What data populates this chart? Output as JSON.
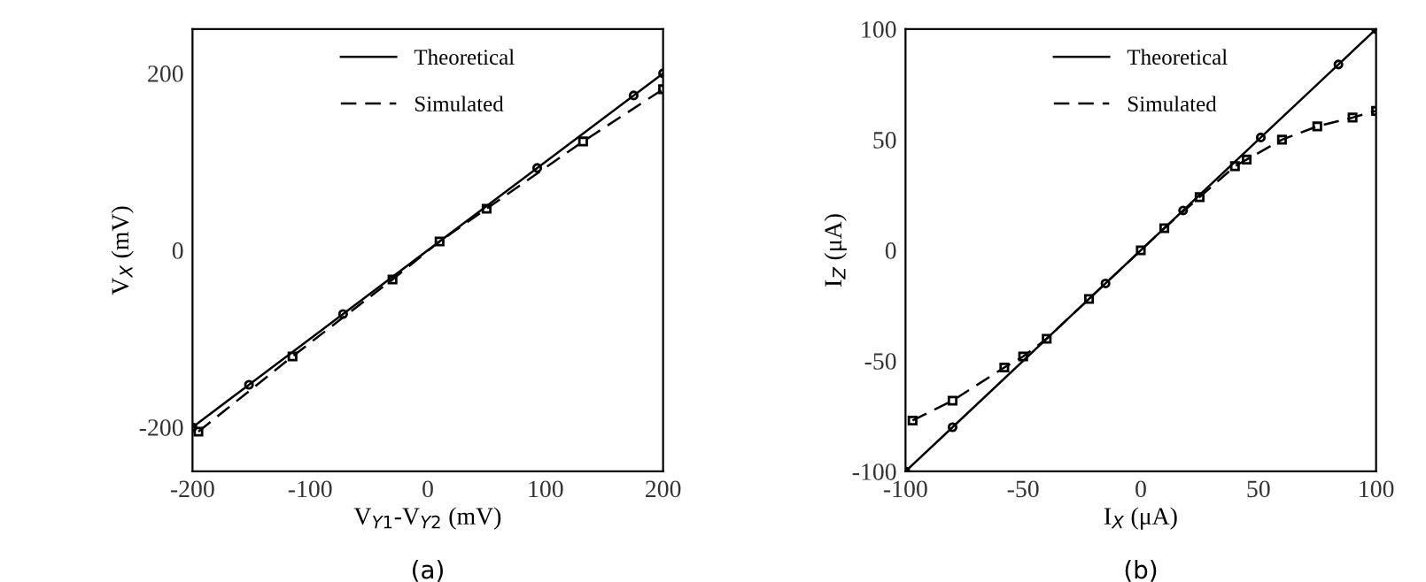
{
  "chart_data": [
    {
      "type": "line",
      "xlabel": "V$_{Y1}$-V$_{Y2}$ (mV)",
      "ylabel": "V$_{X}$ (mV)",
      "annotations": [
        "(a)"
      ],
      "legend": "top",
      "grid": false,
      "xlim": [
        -200,
        200
      ],
      "ylim": [
        -250,
        250
      ],
      "xticks": [
        -200,
        -100,
        0,
        100,
        200
      ],
      "yticks": [
        -200,
        0,
        200
      ],
      "series": [
        {
          "name": "Theoretical",
          "color": "#000000",
          "line_style": "solid",
          "marker": "circle",
          "x": [
            -200,
            -152,
            -72,
            93,
            175,
            200
          ],
          "values": [
            -200,
            -152,
            -72,
            93,
            175,
            200
          ]
        },
        {
          "name": "Simulated",
          "color": "#000000",
          "line_style": "dashed",
          "marker": "square",
          "x": [
            -195,
            -115,
            -30,
            10,
            50,
            132,
            200
          ],
          "values": [
            -205,
            -120,
            -33,
            10,
            47,
            123,
            182
          ]
        }
      ]
    },
    {
      "type": "line",
      "xlabel": "I$_{X}$ (μA)",
      "ylabel": "I$_{Z}$ (μA)",
      "annotations": [
        "(b)"
      ],
      "legend": "top",
      "grid": false,
      "xlim": [
        -100,
        100
      ],
      "ylim": [
        -100,
        100
      ],
      "xticks": [
        -100,
        -50,
        0,
        50,
        100
      ],
      "yticks": [
        -100,
        -50,
        0,
        50,
        100
      ],
      "series": [
        {
          "name": "Theoretical",
          "color": "#000000",
          "line_style": "solid",
          "marker": "circle",
          "x": [
            -100,
            -80,
            -15,
            18,
            51,
            84,
            100
          ],
          "values": [
            -100,
            -80,
            -15,
            18,
            51,
            84,
            100
          ]
        },
        {
          "name": "Simulated",
          "color": "#000000",
          "line_style": "dashed",
          "marker": "square",
          "x": [
            -97,
            -80,
            -58,
            -50,
            -40,
            -22,
            0,
            10,
            25,
            40,
            45,
            60,
            75,
            90,
            100
          ],
          "values": [
            -77,
            -68,
            -53,
            -48,
            -40,
            -22,
            0,
            10,
            24,
            38,
            41,
            50,
            56,
            60,
            63
          ]
        }
      ]
    }
  ]
}
